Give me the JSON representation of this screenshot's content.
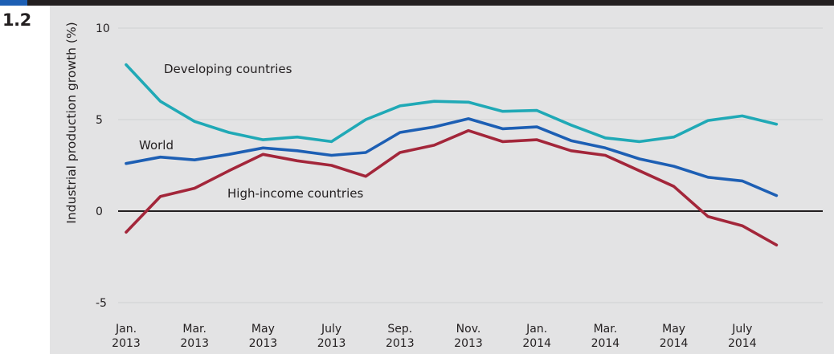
{
  "figure_number": "1.2",
  "chart_data": {
    "type": "line",
    "ylabel": "Industrial production growth (%)",
    "ylim": [
      -5,
      10
    ],
    "yticks": [
      -5,
      0,
      5,
      10
    ],
    "grid": true,
    "x": [
      "Jan. 2013",
      "Feb. 2013",
      "Mar. 2013",
      "Apr. 2013",
      "May 2013",
      "June 2013",
      "July 2013",
      "Aug. 2013",
      "Sep. 2013",
      "Oct. 2013",
      "Nov. 2013",
      "Dec. 2013",
      "Jan. 2014",
      "Feb. 2014",
      "Mar. 2014",
      "Apr. 2014",
      "May 2014",
      "June 2014",
      "July 2014",
      "Aug. 2014"
    ],
    "xtick_labels": [
      {
        "month": "Jan.",
        "year": "2013",
        "index": 0
      },
      {
        "month": "Mar.",
        "year": "2013",
        "index": 2
      },
      {
        "month": "May",
        "year": "2013",
        "index": 4
      },
      {
        "month": "July",
        "year": "2013",
        "index": 6
      },
      {
        "month": "Sep.",
        "year": "2013",
        "index": 8
      },
      {
        "month": "Nov.",
        "year": "2013",
        "index": 10
      },
      {
        "month": "Jan.",
        "year": "2014",
        "index": 12
      },
      {
        "month": "Mar.",
        "year": "2014",
        "index": 14
      },
      {
        "month": "May",
        "year": "2014",
        "index": 16
      },
      {
        "month": "July",
        "year": "2014",
        "index": 18
      }
    ],
    "series": [
      {
        "name": "Developing countries",
        "color": "#20a9b6",
        "values": [
          8.0,
          6.0,
          4.9,
          4.3,
          3.9,
          4.05,
          3.8,
          5.0,
          5.75,
          6.0,
          5.95,
          5.45,
          5.5,
          4.7,
          4.0,
          3.8,
          4.05,
          4.95,
          5.2,
          4.75
        ]
      },
      {
        "name": "World",
        "color": "#1d5fb4",
        "values": [
          2.6,
          2.95,
          2.8,
          3.1,
          3.45,
          3.3,
          3.05,
          3.2,
          4.3,
          4.6,
          5.05,
          4.5,
          4.6,
          3.85,
          3.45,
          2.85,
          2.45,
          1.85,
          1.65,
          0.85
        ]
      },
      {
        "name": "High-income countries",
        "color": "#a3263a",
        "values": [
          -1.15,
          0.8,
          1.25,
          2.2,
          3.1,
          2.75,
          2.5,
          1.9,
          3.2,
          3.6,
          4.4,
          3.8,
          3.9,
          3.3,
          3.05,
          2.2,
          1.35,
          -0.3,
          -0.8,
          -1.85
        ]
      }
    ]
  }
}
